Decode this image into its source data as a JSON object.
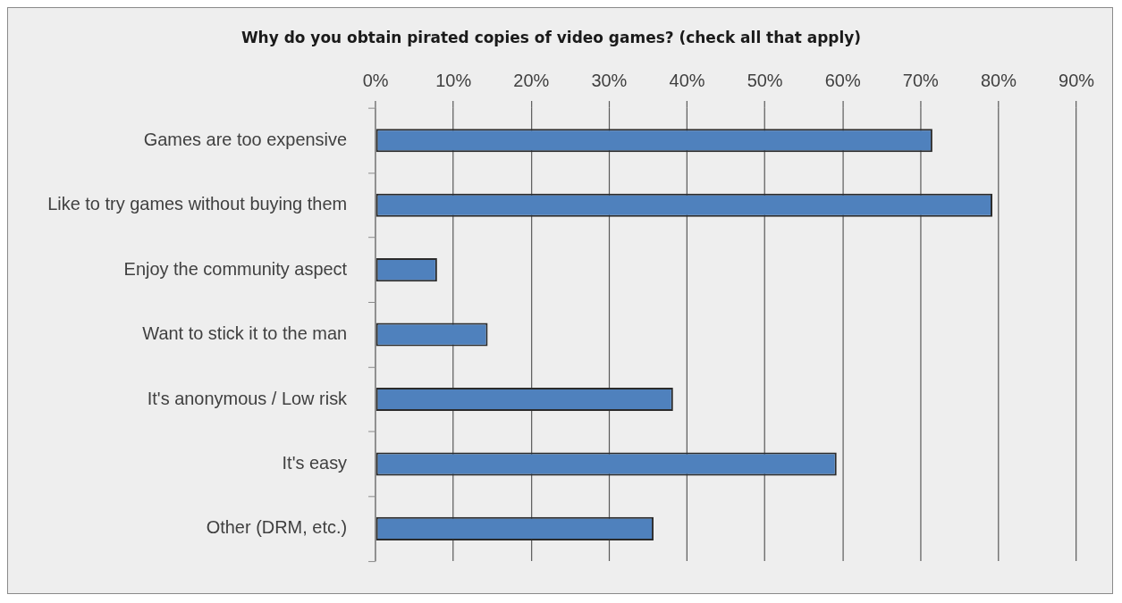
{
  "chart_data": {
    "type": "bar",
    "orientation": "horizontal",
    "title": "Why do you obtain pirated copies of video games? (check all that apply)",
    "categories": [
      "Games are too expensive",
      "Like to try games without buying them",
      "Enjoy the community aspect",
      "Want to stick it to the man",
      "It's anonymous / Low risk",
      "It's easy",
      "Other (DRM, etc.)"
    ],
    "values": [
      71.5,
      79.2,
      7.9,
      14.4,
      38.2,
      59.2,
      35.7
    ],
    "color": "#4f81bd",
    "xlim": [
      0,
      90
    ],
    "xticks": [
      {
        "value": 0,
        "label": "0%"
      },
      {
        "value": 10,
        "label": "10%"
      },
      {
        "value": 20,
        "label": "20%"
      },
      {
        "value": 30,
        "label": "30%"
      },
      {
        "value": 40,
        "label": "40%"
      },
      {
        "value": 50,
        "label": "50%"
      },
      {
        "value": 60,
        "label": "60%"
      },
      {
        "value": 70,
        "label": "70%"
      },
      {
        "value": 80,
        "label": "80%"
      },
      {
        "value": 90,
        "label": "90%"
      }
    ],
    "grid": "x",
    "legend": false
  }
}
